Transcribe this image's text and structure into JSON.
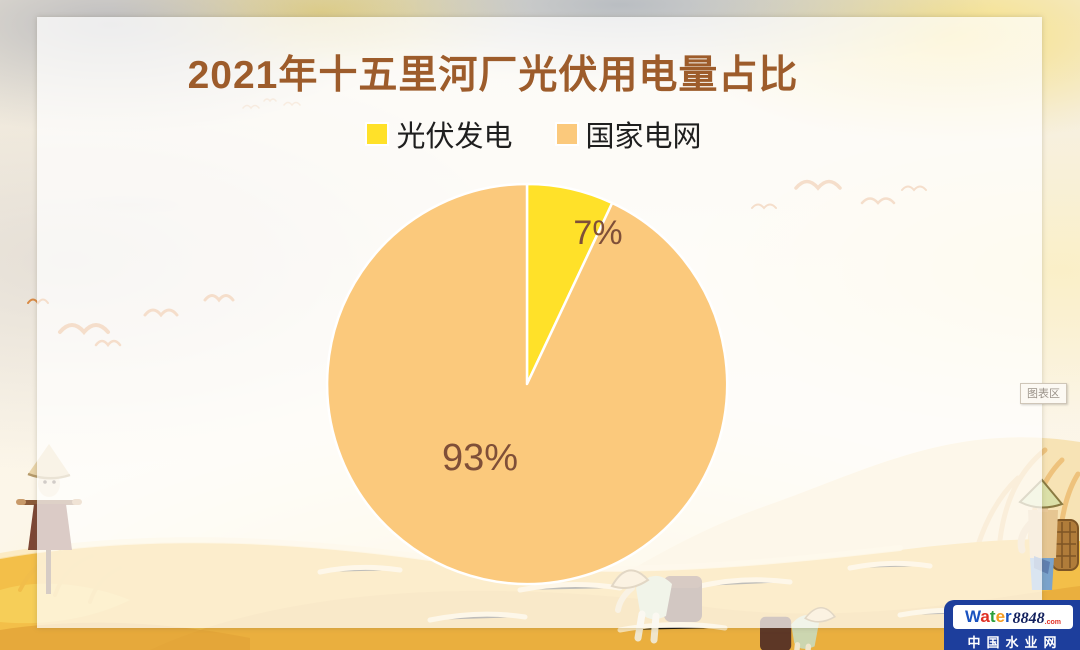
{
  "chart_data": {
    "type": "pie",
    "title": "2021年十五里河厂光伏用电量占比",
    "series": [
      {
        "name": "光伏发电",
        "value": 7
      },
      {
        "name": "国家电网",
        "value": 93
      }
    ],
    "labels": [
      "7%",
      "93%"
    ],
    "colors": [
      "#FFE129",
      "#FBC97C"
    ],
    "slice_border_color": "#FFFFFF",
    "label_color": "#7F4F38",
    "title_color": "#9D5C2B",
    "legend_position": "top",
    "start_angle_deg": 0,
    "direction": "clockwise"
  },
  "tooltip": {
    "label": "图表区"
  },
  "watermark": {
    "brand_letters": [
      {
        "ch": "W",
        "color": "#1a53c0"
      },
      {
        "ch": "a",
        "color": "#e03024"
      },
      {
        "ch": "t",
        "color": "#2ba03c"
      },
      {
        "ch": "e",
        "color": "#f59a1f"
      },
      {
        "ch": "r",
        "color": "#1a53c0"
      }
    ],
    "brand_number": "8848",
    "brand_tld": ".com",
    "site_name": "中国水业网",
    "bg_color": "#1d3e9c"
  }
}
